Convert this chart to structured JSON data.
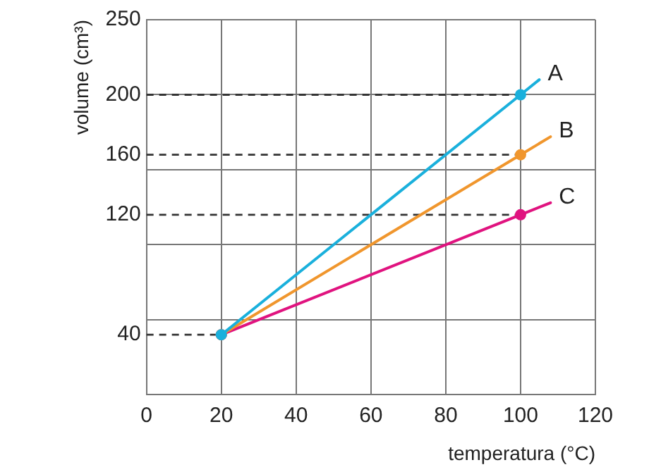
{
  "chart_data": {
    "type": "line",
    "xlabel": "temperatura (°C)",
    "ylabel": "volume (cm³)",
    "xlim": [
      0,
      120
    ],
    "xticks": [
      0,
      20,
      40,
      60,
      80,
      100,
      120
    ],
    "ylim": [
      0,
      250
    ],
    "yticks": [
      {
        "value": 0,
        "label": null
      },
      {
        "value": 50,
        "label": null
      },
      {
        "value": 100,
        "label": null
      },
      {
        "value": 150,
        "label": null
      },
      200,
      250
    ],
    "grid": true,
    "legend": false,
    "marker": "circle",
    "line_style": "solid",
    "series": [
      {
        "name": "A",
        "color": "#1ab0dc",
        "x": [
          20,
          100,
          105
        ],
        "values": [
          40,
          200,
          210
        ]
      },
      {
        "name": "B",
        "color": "#f0962d",
        "x": [
          20,
          100,
          108
        ],
        "values": [
          40,
          160,
          172
        ]
      },
      {
        "name": "C",
        "color": "#e0137f",
        "x": [
          20,
          100,
          108
        ],
        "values": [
          40,
          120,
          128
        ]
      }
    ],
    "ref_lines": [
      {
        "axis": "y",
        "value": 40,
        "label": "40",
        "color": "#333333",
        "line_style": "dashed"
      },
      {
        "axis": "y",
        "value": 120,
        "label": "120",
        "color": "#333333",
        "line_style": "dashed"
      },
      {
        "axis": "y",
        "value": 160,
        "label": "160",
        "color": "#333333",
        "line_style": "dashed"
      },
      {
        "axis": "y",
        "value": 200,
        "color": "#333333",
        "line_style": "dashed"
      }
    ]
  }
}
